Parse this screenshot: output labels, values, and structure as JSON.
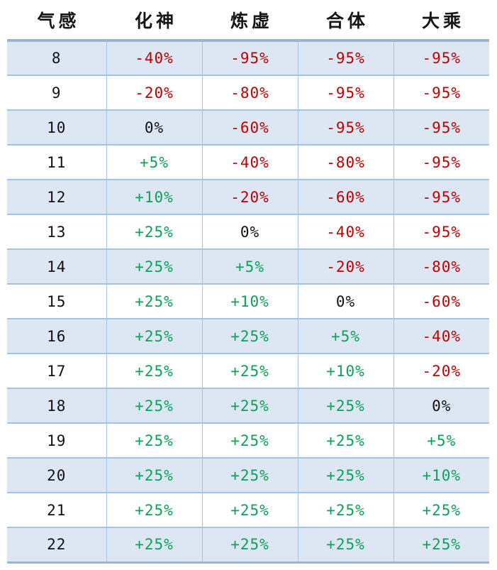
{
  "chart_data": {
    "type": "table",
    "columns": [
      "气感",
      "化神",
      "炼虚",
      "合体",
      "大乘"
    ],
    "rows": [
      {
        "level": "8",
        "values": [
          "-40%",
          "-95%",
          "-95%",
          "-95%"
        ]
      },
      {
        "level": "9",
        "values": [
          "-20%",
          "-80%",
          "-95%",
          "-95%"
        ]
      },
      {
        "level": "10",
        "values": [
          "0%",
          "-60%",
          "-95%",
          "-95%"
        ]
      },
      {
        "level": "11",
        "values": [
          "+5%",
          "-40%",
          "-80%",
          "-95%"
        ]
      },
      {
        "level": "12",
        "values": [
          "+10%",
          "-20%",
          "-60%",
          "-95%"
        ]
      },
      {
        "level": "13",
        "values": [
          "+25%",
          "0%",
          "-40%",
          "-95%"
        ]
      },
      {
        "level": "14",
        "values": [
          "+25%",
          "+5%",
          "-20%",
          "-80%"
        ]
      },
      {
        "level": "15",
        "values": [
          "+25%",
          "+10%",
          "0%",
          "-60%"
        ]
      },
      {
        "level": "16",
        "values": [
          "+25%",
          "+25%",
          "+5%",
          "-40%"
        ]
      },
      {
        "level": "17",
        "values": [
          "+25%",
          "+25%",
          "+10%",
          "-20%"
        ]
      },
      {
        "level": "18",
        "values": [
          "+25%",
          "+25%",
          "+25%",
          "0%"
        ]
      },
      {
        "level": "19",
        "values": [
          "+25%",
          "+25%",
          "+25%",
          "+5%"
        ]
      },
      {
        "level": "20",
        "values": [
          "+25%",
          "+25%",
          "+25%",
          "+10%"
        ]
      },
      {
        "level": "21",
        "values": [
          "+25%",
          "+25%",
          "+25%",
          "+25%"
        ]
      },
      {
        "level": "22",
        "values": [
          "+25%",
          "+25%",
          "+25%",
          "+25%"
        ]
      }
    ],
    "layout_hints": {
      "stripe_rows": "alternating starting with first data row shaded",
      "value_color_rule": "negative=red, zero=black, positive=green"
    }
  },
  "colors": {
    "negative": "#c00000",
    "positive": "#0ca257",
    "zero": "#111111",
    "stripe_bg": "#dce7f3",
    "border_thin": "#a4c3e0",
    "border_thick": "#9bb4d2"
  }
}
